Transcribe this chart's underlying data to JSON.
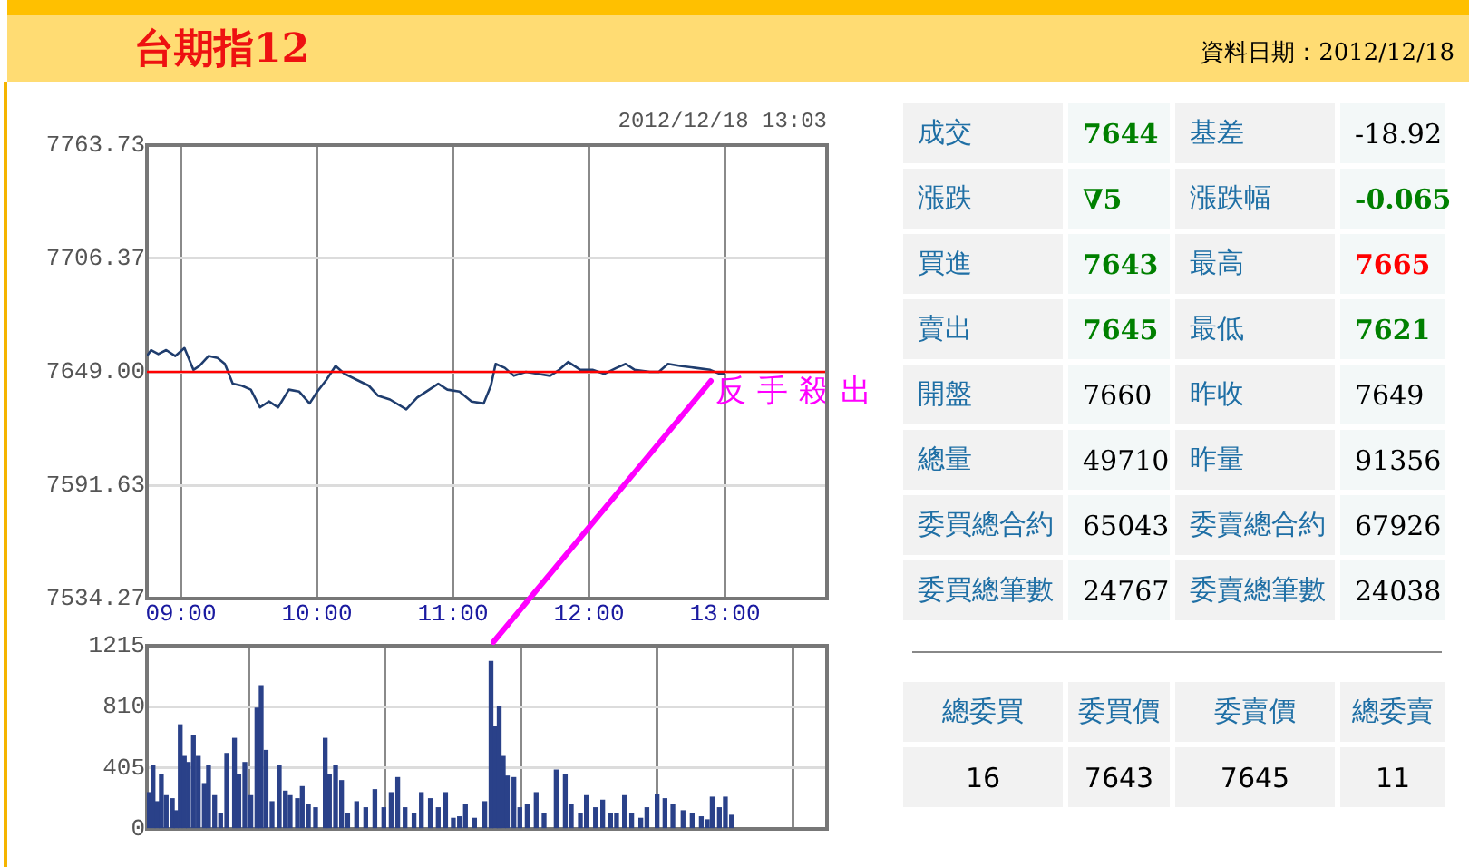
{
  "chart_data": [
    {
      "type": "line",
      "title": "台期指12",
      "annotations": [
        "2012/12/18 13:03",
        {
          "text": "反手殺出",
          "x": 12.9,
          "y": 7645
        }
      ],
      "x": [
        8.75,
        8.781,
        8.834,
        8.892,
        8.959,
        9.026,
        9.092,
        9.137,
        9.203,
        9.27,
        9.323,
        9.381,
        9.448,
        9.514,
        9.581,
        9.648,
        9.714,
        9.794,
        9.87,
        9.946,
        10.003,
        10.07,
        10.137,
        10.203,
        10.292,
        10.381,
        10.448,
        10.537,
        10.657,
        10.737,
        10.826,
        10.892,
        10.959,
        11.048,
        11.137,
        11.226,
        11.279,
        11.314,
        11.381,
        11.448,
        11.537,
        11.626,
        11.714,
        11.781,
        11.848,
        11.937,
        12.026,
        12.114,
        12.203,
        12.27,
        12.337,
        12.448,
        12.514,
        12.581,
        12.67,
        12.781,
        12.892,
        12.959,
        13.003
      ],
      "series": [
        {
          "color": "#1f3d6e",
          "values": [
            7657,
            7660,
            7658,
            7660,
            7657,
            7661,
            7650,
            7652,
            7657,
            7656,
            7653,
            7643,
            7642,
            7640,
            7631,
            7634,
            7631,
            7640,
            7639,
            7633,
            7639,
            7645,
            7652,
            7648,
            7645,
            7642,
            7637,
            7635,
            7630,
            7636,
            7640,
            7643,
            7640,
            7639,
            7634,
            7633,
            7642,
            7653,
            7651,
            7647,
            7649,
            7648,
            7647,
            7650,
            7654,
            7650,
            7650,
            7648,
            7651,
            7653,
            7650,
            7649,
            7649,
            7653,
            7652,
            7651,
            7650,
            7648,
            7648
          ]
        }
      ],
      "xlim": [
        8.75,
        13.75
      ],
      "xticks": [
        {
          "value": 9,
          "label": "09:00"
        },
        {
          "value": 10,
          "label": "10:00"
        },
        {
          "value": 11,
          "label": "11:00"
        },
        {
          "value": 12,
          "label": "12:00"
        },
        {
          "value": 13,
          "label": "13:00"
        }
      ],
      "ylim": [
        7534.27,
        7763.73
      ],
      "yticks": [
        7534.27,
        7591.63,
        {
          "value": 7649,
          "label": "7649.00"
        },
        7706.37,
        7763.73
      ],
      "ref_lines": [
        {
          "axis": "y",
          "value": 7649,
          "color": "#ff0000"
        }
      ],
      "grid": true,
      "marker": "none"
    },
    {
      "type": "bar",
      "x": [
        8.765,
        8.795,
        8.826,
        8.856,
        8.892,
        8.937,
        8.965,
        8.995,
        9.025,
        9.055,
        9.092,
        9.128,
        9.172,
        9.203,
        9.248,
        9.292,
        9.337,
        9.394,
        9.426,
        9.47,
        9.514,
        9.559,
        9.59,
        9.626,
        9.67,
        9.723,
        9.768,
        9.803,
        9.857,
        9.892,
        9.937,
        9.99,
        10.061,
        10.092,
        10.137,
        10.181,
        10.226,
        10.292,
        10.359,
        10.426,
        10.492,
        10.546,
        10.594,
        10.648,
        10.714,
        10.768,
        10.834,
        10.892,
        10.946,
        11.003,
        11.048,
        11.092,
        11.159,
        11.234,
        11.28,
        11.31,
        11.34,
        11.37,
        11.4,
        11.448,
        11.492,
        11.546,
        11.612,
        11.67,
        11.759,
        11.826,
        11.87,
        11.937,
        11.981,
        12.048,
        12.101,
        12.159,
        12.203,
        12.261,
        12.314,
        12.381,
        12.426,
        12.501,
        12.559,
        12.617,
        12.692,
        12.759,
        12.826,
        12.87,
        12.906,
        12.959,
        13.003,
        13.048
      ],
      "series": [
        {
          "color": "#2a4189",
          "values": [
            240,
            420,
            180,
            360,
            220,
            200,
            120,
            690,
            480,
            440,
            620,
            480,
            300,
            420,
            220,
            100,
            500,
            600,
            360,
            440,
            220,
            800,
            950,
            520,
            180,
            420,
            250,
            220,
            200,
            280,
            160,
            140,
            600,
            360,
            420,
            320,
            100,
            180,
            140,
            260,
            140,
            240,
            340,
            140,
            100,
            240,
            200,
            140,
            240,
            70,
            80,
            160,
            70,
            180,
            1110,
            680,
            810,
            480,
            350,
            340,
            140,
            160,
            240,
            100,
            390,
            360,
            160,
            100,
            220,
            140,
            190,
            100,
            100,
            220,
            100,
            70,
            140,
            230,
            200,
            160,
            120,
            100,
            80,
            60,
            210,
            140,
            210,
            90
          ]
        }
      ],
      "xlim": [
        8.75,
        13.75
      ],
      "xticks": [
        {
          "value": 9,
          "label": null
        },
        {
          "value": 10,
          "label": null
        },
        {
          "value": 11,
          "label": null
        },
        {
          "value": 12,
          "label": null
        },
        {
          "value": 13,
          "label": null
        }
      ],
      "ylim": [
        0,
        1215
      ],
      "yticks": [
        0,
        405,
        810,
        1215
      ],
      "grid": true,
      "tick_labels": "y"
    },
    {
      "type": "other",
      "title": "資料日期：2012/12/18",
      "cell_labels": [
        [
          "成交",
          "7644",
          "基差",
          "-18.92"
        ],
        [
          "漲跌",
          "∇5",
          "漲跌幅",
          "-0.065"
        ],
        [
          "買進",
          "7643",
          "最高",
          "7665"
        ],
        [
          "賣出",
          "7645",
          "最低",
          "7621"
        ],
        [
          "開盤",
          "7660",
          "昨收",
          "7649"
        ],
        [
          "總量",
          "49710",
          "昨量",
          "91356"
        ],
        [
          "委買總合約",
          "65043",
          "委賣總合約",
          "67926"
        ],
        [
          "委買總筆數",
          "24767",
          "委賣總筆數",
          "24038"
        ]
      ],
      "colors": [
        [
          "#1f6fa5",
          "#008000",
          "#1f6fa5",
          "#000000"
        ],
        [
          "#1f6fa5",
          "#008000",
          "#1f6fa5",
          "#008000"
        ],
        [
          "#1f6fa5",
          "#008000",
          "#1f6fa5",
          "#ff0000"
        ],
        [
          "#1f6fa5",
          "#008000",
          "#1f6fa5",
          "#008000"
        ],
        [
          "#1f6fa5",
          "#000000",
          "#1f6fa5",
          "#000000"
        ],
        [
          "#1f6fa5",
          "#000000",
          "#1f6fa5",
          "#000000"
        ],
        [
          "#1f6fa5",
          "#000000",
          "#1f6fa5",
          "#000000"
        ],
        [
          "#1f6fa5",
          "#000000",
          "#1f6fa5",
          "#000000"
        ]
      ]
    },
    {
      "type": "other",
      "cell_labels": [
        [
          "總委買",
          "委買價",
          "委賣價",
          "總委賣"
        ],
        [
          "16",
          "7643",
          "7645",
          "11"
        ]
      ],
      "colors": [
        [
          "#1f6fa5",
          "#1f6fa5",
          "#1f6fa5",
          "#1f6fa5"
        ],
        [
          "#000000",
          "#000000",
          "#000000",
          "#000000"
        ]
      ]
    }
  ]
}
